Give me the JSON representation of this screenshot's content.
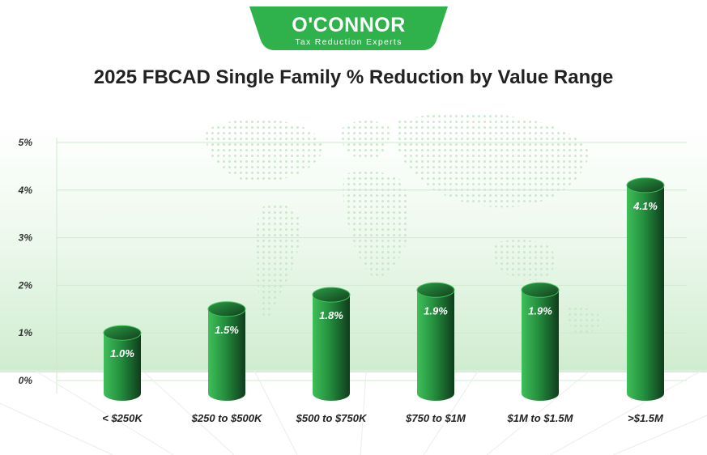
{
  "brand": {
    "name": "O'CONNOR",
    "tagline": "Tax Reduction Experts",
    "colors": {
      "primary": "#2fb24c",
      "bar_light": "#3fbf5a",
      "bar_dark": "#0f3d1c"
    }
  },
  "chart_data": {
    "type": "bar",
    "title": "2025 FBCAD Single Family % Reduction by Value Range",
    "xlabel": "",
    "ylabel": "",
    "categories": [
      "< $250K",
      "$250 to $500K",
      "$500 to $750K",
      "$750 to $1M",
      "$1M to $1.5M",
      ">$1.5M"
    ],
    "values": [
      1.0,
      1.5,
      1.8,
      1.9,
      1.9,
      4.1
    ],
    "data_labels": [
      "1.0%",
      "1.5%",
      "1.8%",
      "1.9%",
      "1.9%",
      "4.1%"
    ],
    "yticks": [
      0,
      1,
      2,
      3,
      4,
      5
    ],
    "ytick_labels": [
      "0%",
      "1%",
      "2%",
      "3%",
      "4%",
      "5%"
    ],
    "ylim": [
      0,
      5
    ],
    "grid": true,
    "legend": "none",
    "bar_style": "3d-cylinder",
    "background": "dotted world map"
  }
}
